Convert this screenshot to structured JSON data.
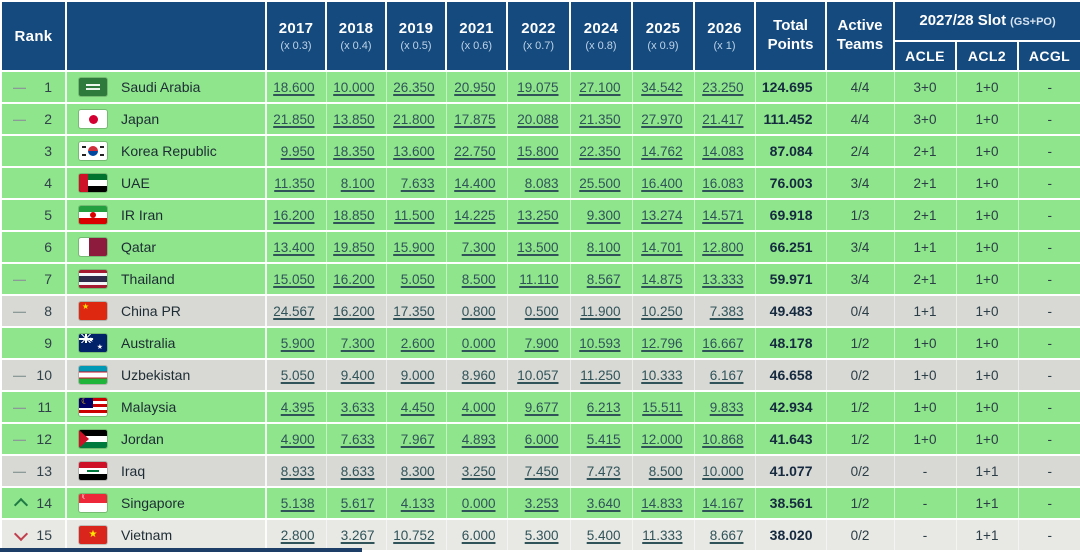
{
  "header": {
    "rank": "Rank",
    "country": "",
    "years": [
      {
        "label": "2017",
        "mult": "(x 0.3)"
      },
      {
        "label": "2018",
        "mult": "(x 0.4)"
      },
      {
        "label": "2019",
        "mult": "(x 0.5)"
      },
      {
        "label": "2021",
        "mult": "(x 0.6)"
      },
      {
        "label": "2022",
        "mult": "(x 0.7)"
      },
      {
        "label": "2024",
        "mult": "(x 0.8)"
      },
      {
        "label": "2025",
        "mult": "(x 0.9)"
      },
      {
        "label": "2026",
        "mult": "(x 1)"
      }
    ],
    "total": "Total Points",
    "active": "Active Teams",
    "slot": {
      "title": "2027/28 Slot",
      "suffix": "(GS+PO)",
      "cols": [
        "ACLE",
        "ACL2",
        "ACGL"
      ]
    }
  },
  "rows": [
    {
      "rank": "1",
      "indicator": "dash",
      "country": "Saudi Arabia",
      "flag": "sa",
      "tone": "green",
      "values": [
        "18.600",
        "10.000",
        "26.350",
        "20.950",
        "19.075",
        "27.100",
        "34.542",
        "23.250"
      ],
      "total": "124.695",
      "active": "4/4",
      "acle": "3+0",
      "acl2": "1+0",
      "acgl": "-"
    },
    {
      "rank": "2",
      "indicator": "dash",
      "country": "Japan",
      "flag": "jp",
      "tone": "green",
      "values": [
        "21.850",
        "13.850",
        "21.800",
        "17.875",
        "20.088",
        "21.350",
        "27.970",
        "21.417"
      ],
      "total": "111.452",
      "active": "4/4",
      "acle": "3+0",
      "acl2": "1+0",
      "acgl": "-"
    },
    {
      "rank": "3",
      "indicator": "none",
      "country": "Korea Republic",
      "flag": "kr",
      "tone": "green",
      "values": [
        "9.950",
        "18.350",
        "13.600",
        "22.750",
        "15.800",
        "22.350",
        "14.762",
        "14.083"
      ],
      "total": "87.084",
      "active": "2/4",
      "acle": "2+1",
      "acl2": "1+0",
      "acgl": "-"
    },
    {
      "rank": "4",
      "indicator": "none",
      "country": "UAE",
      "flag": "ae",
      "tone": "green",
      "values": [
        "11.350",
        "8.100",
        "7.633",
        "14.400",
        "8.083",
        "25.500",
        "16.400",
        "16.083"
      ],
      "total": "76.003",
      "active": "3/4",
      "acle": "2+1",
      "acl2": "1+0",
      "acgl": "-"
    },
    {
      "rank": "5",
      "indicator": "none",
      "country": "IR Iran",
      "flag": "ir",
      "tone": "green",
      "values": [
        "16.200",
        "18.850",
        "11.500",
        "14.225",
        "13.250",
        "9.300",
        "13.274",
        "14.571"
      ],
      "total": "69.918",
      "active": "1/3",
      "acle": "2+1",
      "acl2": "1+0",
      "acgl": "-"
    },
    {
      "rank": "6",
      "indicator": "none",
      "country": "Qatar",
      "flag": "qa",
      "tone": "green",
      "values": [
        "13.400",
        "19.850",
        "15.900",
        "7.300",
        "13.500",
        "8.100",
        "14.701",
        "12.800"
      ],
      "total": "66.251",
      "active": "3/4",
      "acle": "1+1",
      "acl2": "1+0",
      "acgl": "-"
    },
    {
      "rank": "7",
      "indicator": "dash",
      "country": "Thailand",
      "flag": "th",
      "tone": "green",
      "values": [
        "15.050",
        "16.200",
        "5.050",
        "8.500",
        "11.110",
        "8.567",
        "14.875",
        "13.333"
      ],
      "total": "59.971",
      "active": "3/4",
      "acle": "2+1",
      "acl2": "1+0",
      "acgl": "-"
    },
    {
      "rank": "8",
      "indicator": "dash",
      "country": "China PR",
      "flag": "cn",
      "tone": "gray",
      "values": [
        "24.567",
        "16.200",
        "17.350",
        "0.800",
        "0.500",
        "11.900",
        "10.250",
        "7.383"
      ],
      "total": "49.483",
      "active": "0/4",
      "acle": "1+1",
      "acl2": "1+0",
      "acgl": "-"
    },
    {
      "rank": "9",
      "indicator": "none",
      "country": "Australia",
      "flag": "au",
      "tone": "green",
      "values": [
        "5.900",
        "7.300",
        "2.600",
        "0.000",
        "7.900",
        "10.593",
        "12.796",
        "16.667"
      ],
      "total": "48.178",
      "active": "1/2",
      "acle": "1+0",
      "acl2": "1+0",
      "acgl": "-"
    },
    {
      "rank": "10",
      "indicator": "dash",
      "country": "Uzbekistan",
      "flag": "uz",
      "tone": "gray",
      "values": [
        "5.050",
        "9.400",
        "9.000",
        "8.960",
        "10.057",
        "11.250",
        "10.333",
        "6.167"
      ],
      "total": "46.658",
      "active": "0/2",
      "acle": "1+0",
      "acl2": "1+0",
      "acgl": "-"
    },
    {
      "rank": "11",
      "indicator": "dash",
      "country": "Malaysia",
      "flag": "my",
      "tone": "green",
      "values": [
        "4.395",
        "3.633",
        "4.450",
        "4.000",
        "9.677",
        "6.213",
        "15.511",
        "9.833"
      ],
      "total": "42.934",
      "active": "1/2",
      "acle": "1+0",
      "acl2": "1+0",
      "acgl": "-"
    },
    {
      "rank": "12",
      "indicator": "dash",
      "country": "Jordan",
      "flag": "jo",
      "tone": "green",
      "values": [
        "4.900",
        "7.633",
        "7.967",
        "4.893",
        "6.000",
        "5.415",
        "12.000",
        "10.868"
      ],
      "total": "41.643",
      "active": "1/2",
      "acle": "1+0",
      "acl2": "1+0",
      "acgl": "-"
    },
    {
      "rank": "13",
      "indicator": "dash",
      "country": "Iraq",
      "flag": "iq",
      "tone": "gray",
      "values": [
        "8.933",
        "8.633",
        "8.300",
        "3.250",
        "7.450",
        "7.473",
        "8.500",
        "10.000"
      ],
      "total": "41.077",
      "active": "0/2",
      "acle": "-",
      "acl2": "1+1",
      "acgl": "-"
    },
    {
      "rank": "14",
      "indicator": "up",
      "country": "Singapore",
      "flag": "sg",
      "tone": "green",
      "values": [
        "5.138",
        "5.617",
        "4.133",
        "0.000",
        "3.253",
        "3.640",
        "14.833",
        "14.167"
      ],
      "total": "38.561",
      "active": "1/2",
      "acle": "-",
      "acl2": "1+1",
      "acgl": "-"
    },
    {
      "rank": "15",
      "indicator": "down",
      "country": "Vietnam",
      "flag": "vn",
      "tone": "light",
      "values": [
        "2.800",
        "3.267",
        "10.752",
        "6.000",
        "5.300",
        "5.400",
        "11.333",
        "8.667"
      ],
      "total": "38.020",
      "active": "0/2",
      "acle": "-",
      "acl2": "1+1",
      "acgl": "-"
    }
  ],
  "colors": {
    "header_bg": "#154a7e",
    "row_green": "#8fe58c",
    "row_gray": "#d8d8d4",
    "row_light": "#e8e8e4",
    "link_text": "#2f5359",
    "total_text": "#15293f",
    "up_arrow": "#1f7a44",
    "down_arrow": "#c2404e"
  }
}
